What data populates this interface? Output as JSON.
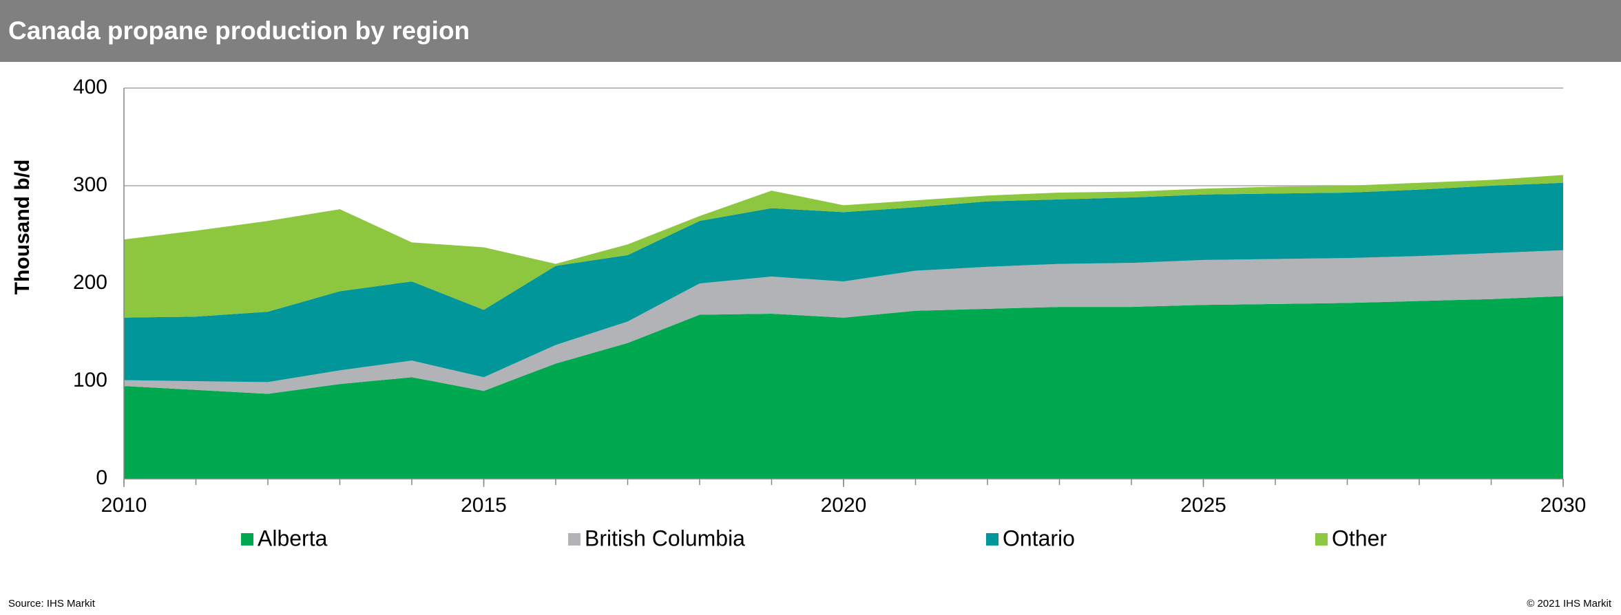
{
  "chart_data": {
    "type": "stacked-area",
    "title": "Canada propane production by region",
    "y_label": "Thousand b/d",
    "source": "Source: IHS Markit",
    "copyright": "© 2021 IHS Markit",
    "x": [
      2010,
      2011,
      2012,
      2013,
      2014,
      2015,
      2016,
      2017,
      2018,
      2019,
      2020,
      2021,
      2022,
      2023,
      2024,
      2025,
      2026,
      2027,
      2028,
      2029,
      2030
    ],
    "series": [
      {
        "name": "Alberta",
        "color": "#00a94f",
        "values": [
          95,
          91,
          87,
          97,
          104,
          90,
          118,
          139,
          168,
          169,
          165,
          172,
          174,
          176,
          176,
          178,
          179,
          180,
          182,
          184,
          187
        ]
      },
      {
        "name": "British Columbia",
        "color": "#b1b3b6",
        "values": [
          6,
          9,
          12,
          14,
          17,
          14,
          19,
          22,
          32,
          38,
          37,
          41,
          43,
          44,
          45,
          46,
          46,
          46,
          46,
          47,
          47
        ]
      },
      {
        "name": "Ontario",
        "color": "#00969a",
        "values": [
          64,
          66,
          72,
          81,
          81,
          69,
          81,
          68,
          64,
          70,
          71,
          65,
          67,
          66,
          67,
          67,
          67,
          67,
          68,
          69,
          69
        ]
      },
      {
        "name": "Other",
        "color": "#8dc63f",
        "values": [
          80,
          88,
          93,
          84,
          40,
          64,
          2,
          11,
          5,
          18,
          7,
          7,
          6,
          7,
          6,
          6,
          7,
          7,
          7,
          6,
          8
        ]
      }
    ],
    "xlim": [
      2010,
      2030
    ],
    "xticks": [
      2010,
      2015,
      2020,
      2025,
      2030
    ],
    "ylim": [
      0,
      400
    ],
    "yticks": [
      0,
      100,
      200,
      300,
      400
    ],
    "grid": true,
    "legend": "bottom"
  }
}
